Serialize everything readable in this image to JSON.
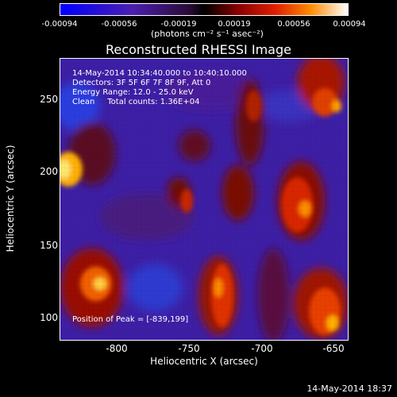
{
  "colorbar": {
    "tick_labels": [
      "-0.00094",
      "-0.00056",
      "-0.00019",
      "0.00019",
      "0.00056",
      "0.00094"
    ],
    "units": "(photons cm⁻² s⁻¹ asec⁻²)"
  },
  "title": "Reconstructed RHESSI Image",
  "info": {
    "time_range": "14-May-2014 10:34:40.000 to 10:40:10.000",
    "detectors": "Detectors: 3F 5F 6F 7F 8F 9F, Att 0",
    "energy_range": "Energy Range: 12.0 - 25.0 keV",
    "method_counts": "Clean     Total counts: 1.36E+04",
    "peak_position": "Position of Peak = [-839,199]"
  },
  "axes": {
    "xlabel": "Heliocentric X (arcsec)",
    "ylabel": "Heliocentric Y (arcsec)",
    "x_ticks": [
      "-800",
      "-750",
      "-700",
      "-650"
    ],
    "y_ticks": [
      "250",
      "200",
      "150",
      "100"
    ]
  },
  "footer": {
    "timestamp": "14-May-2014 18:37"
  }
}
